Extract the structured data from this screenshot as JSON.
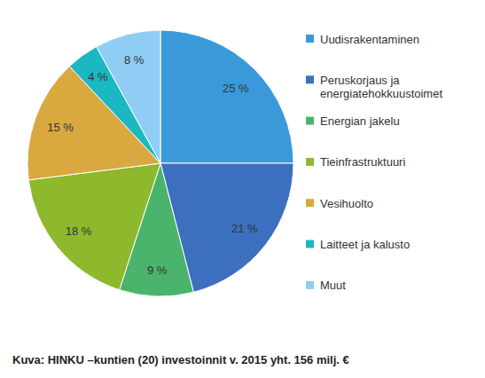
{
  "chart_data": {
    "type": "pie",
    "title": "Kuva: HINKU –kuntien (20) investoinnit v. 2015 yht. 156 milj. €",
    "categories": [
      "Uudisrakentaminen",
      "Peruskorjaus ja energiatehokkuustoimet",
      "Energian jakelu",
      "Tieinfrastruktuuri",
      "Vesihuolto",
      "Laitteet ja kalusto",
      "Muut"
    ],
    "values": [
      25,
      21,
      9,
      18,
      15,
      4,
      8
    ],
    "value_labels": [
      "25 %",
      "21 %",
      "9 %",
      "18 %",
      "15 %",
      "4 %",
      "8 %"
    ],
    "colors": [
      "#3a9ad9",
      "#3d6fbf",
      "#4bb46c",
      "#8fb92d",
      "#d9a83f",
      "#1cb8c1",
      "#8fcdf5"
    ],
    "data_labels": true,
    "legend": "right"
  }
}
